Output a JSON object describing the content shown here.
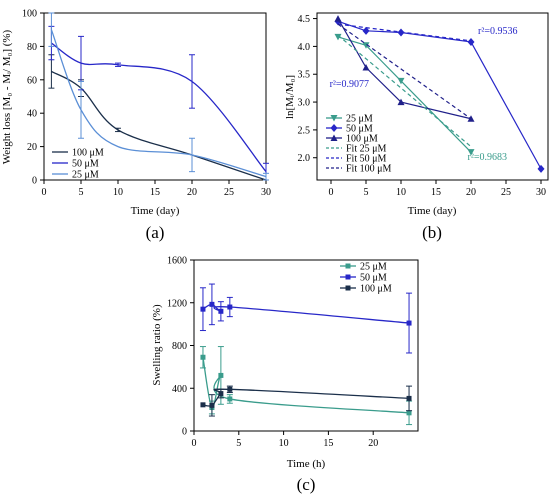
{
  "chart_data": [
    {
      "type": "line",
      "panel_label": "(a)",
      "xlabel": "Time (day)",
      "ylabel": "Weight loss [M₀ - Mᵢ/ M₀] (%)",
      "xlim": [
        0,
        30
      ],
      "ylim": [
        0,
        100
      ],
      "xticks": [
        "0",
        "5",
        "10",
        "15",
        "20",
        "25",
        "30"
      ],
      "yticks": [
        "0",
        "20",
        "40",
        "60",
        "80",
        "100"
      ],
      "legend_position": "bottom-left",
      "series": [
        {
          "name": "100 μM",
          "color": "#1b2f4a",
          "x": [
            1,
            5,
            10,
            20,
            30
          ],
          "y": [
            65,
            55,
            30,
            15,
            0
          ],
          "err": [
            10,
            5,
            1,
            0,
            0
          ]
        },
        {
          "name": "50 μM",
          "color": "#2727c8",
          "x": [
            1,
            5,
            10,
            20,
            30
          ],
          "y": [
            82,
            70,
            69,
            59,
            5
          ],
          "err": [
            10,
            16,
            1,
            16,
            5
          ]
        },
        {
          "name": "25 μM",
          "color": "#5b8fd6",
          "x": [
            1,
            5,
            10,
            20,
            30
          ],
          "y": [
            90,
            42,
            20,
            15,
            2
          ],
          "err": [
            10,
            17,
            0,
            10,
            2
          ]
        }
      ]
    },
    {
      "type": "line",
      "panel_label": "(b)",
      "xlabel": "Time (day)",
      "ylabel": "ln[Mᵢ/M₀]",
      "xlim": [
        -2,
        31
      ],
      "ylim": [
        1.6,
        4.6
      ],
      "xticks": [
        "0",
        "5",
        "10",
        "15",
        "20",
        "25",
        "30"
      ],
      "yticks": [
        "2.0",
        "2.5",
        "3.0",
        "3.5",
        "4.0",
        "4.5"
      ],
      "legend_position": "bottom-left",
      "series": [
        {
          "name": "25 μM",
          "color": "#3a9c8c",
          "marker": "triangle-down",
          "x": [
            1,
            5,
            10,
            20
          ],
          "y": [
            4.17,
            4.02,
            3.38,
            2.1
          ]
        },
        {
          "name": "50 μM",
          "color": "#2727c8",
          "marker": "diamond",
          "x": [
            1,
            5,
            10,
            20,
            30
          ],
          "y": [
            4.45,
            4.28,
            4.25,
            4.08,
            1.8
          ]
        },
        {
          "name": "100 μM",
          "color": "#20208a",
          "marker": "triangle-up",
          "x": [
            1,
            5,
            10,
            20
          ],
          "y": [
            4.5,
            3.62,
            3.0,
            2.7
          ]
        },
        {
          "name": "Fit 25 μM",
          "color": "#3a9c8c",
          "dash": true,
          "x": [
            1,
            20
          ],
          "y": [
            4.2,
            2.2
          ]
        },
        {
          "name": "Fit 50 μM",
          "color": "#2727c8",
          "dash": true,
          "x": [
            1,
            20
          ],
          "y": [
            4.4,
            4.1
          ]
        },
        {
          "name": "Fit 100 μM",
          "color": "#20208a",
          "dash": true,
          "x": [
            1,
            20
          ],
          "y": [
            4.4,
            2.7
          ]
        }
      ],
      "annotations": [
        {
          "text": "r²=0.9536",
          "x": 21,
          "y": 4.22,
          "color": "#2727c8"
        },
        {
          "text": "r²=0.9077",
          "x": -0.2,
          "y": 3.27,
          "color": "#2727c8"
        },
        {
          "text": "r²=0.9683",
          "x": 19.5,
          "y": 1.96,
          "color": "#3a9c8c"
        }
      ]
    },
    {
      "type": "line",
      "panel_label": "(c)",
      "xlabel": "Time (h)",
      "ylabel": "Swelling ratio (%)",
      "xlim": [
        0,
        25
      ],
      "ylim": [
        0,
        1600
      ],
      "xticks": [
        "0",
        "5",
        "10",
        "15",
        "20"
      ],
      "yticks": [
        "0",
        "400",
        "800",
        "1200",
        "1600"
      ],
      "legend_position": "top-right",
      "series": [
        {
          "name": "25 μM",
          "color": "#3a9c8c",
          "x": [
            1,
            2,
            3,
            4,
            24
          ],
          "y": [
            690,
            220,
            520,
            300,
            170
          ],
          "err": [
            100,
            60,
            270,
            40,
            110
          ]
        },
        {
          "name": "50 μM",
          "color": "#2727c8",
          "x": [
            1,
            2,
            3,
            4,
            24
          ],
          "y": [
            1140,
            1185,
            1120,
            1160,
            1010
          ],
          "err": [
            200,
            190,
            90,
            90,
            280
          ]
        },
        {
          "name": "100 μM",
          "color": "#1b2f4a",
          "x": [
            1,
            2,
            3,
            4,
            24
          ],
          "y": [
            245,
            240,
            350,
            390,
            305
          ],
          "err": [
            0,
            100,
            40,
            30,
            115
          ]
        }
      ]
    }
  ]
}
